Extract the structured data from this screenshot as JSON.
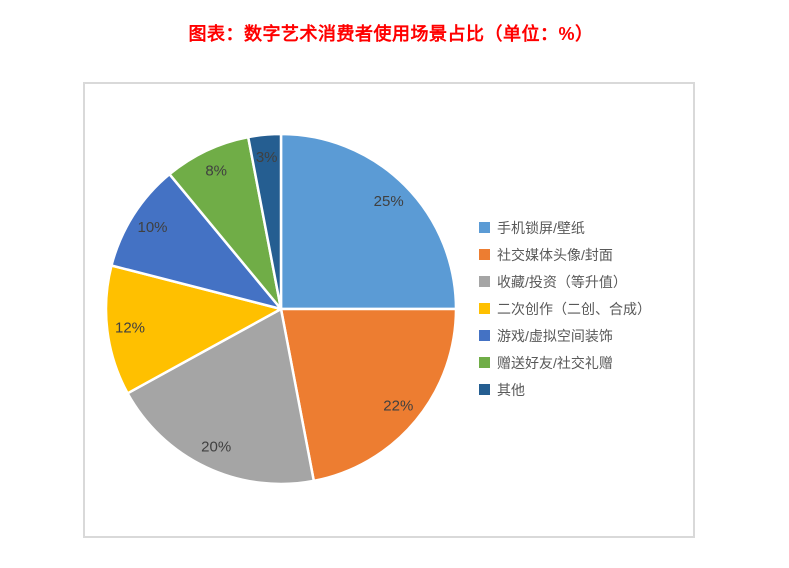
{
  "page": {
    "title": "图表：数字艺术消费者使用场景占比（单位：%）",
    "title_color": "#FF0000",
    "background_color": "#FFFFFF",
    "frame_border_color": "#D9D9D9"
  },
  "chart_data": {
    "type": "pie",
    "title": "图表：数字艺术消费者使用场景占比（单位：%）",
    "unit": "%",
    "categories": [
      "手机锁屏/壁纸",
      "社交媒体头像/封面",
      "收藏/投资（等升值）",
      "二次创作（二创、合成）",
      "游戏/虚拟空间装饰",
      "赠送好友/社交礼赠",
      "其他"
    ],
    "values": [
      25,
      22,
      20,
      12,
      10,
      8,
      3
    ],
    "data_labels": [
      "25%",
      "22%",
      "20%",
      "12%",
      "10%",
      "8%",
      "3%"
    ],
    "colors": [
      "#5B9BD5",
      "#ED7D31",
      "#A5A5A5",
      "#FFC000",
      "#4472C4",
      "#70AD47",
      "#255E91"
    ],
    "legend_position": "right",
    "start_angle_deg": 0,
    "direction": "clockwise",
    "label_color": "#404040",
    "slice_border_color": "#FFFFFF"
  }
}
